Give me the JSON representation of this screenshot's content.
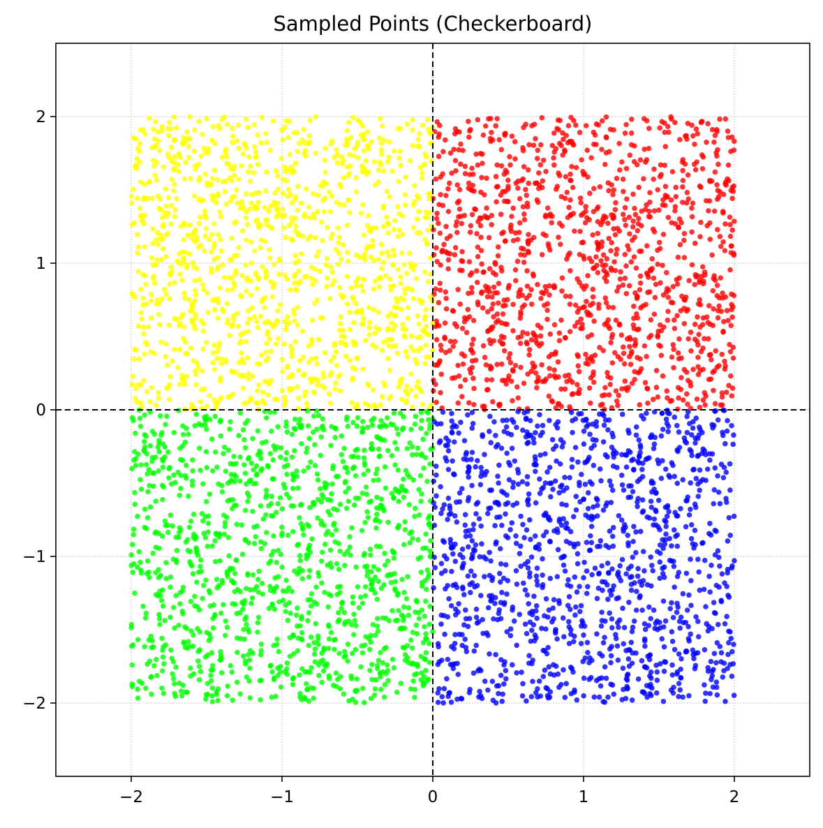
{
  "chart_data": {
    "type": "scatter",
    "title": "Sampled Points (Checkerboard)",
    "xlabel": "",
    "ylabel": "",
    "xlim": [
      -2.5,
      2.5
    ],
    "ylim": [
      -2.5,
      2.5
    ],
    "x_ticks": [
      -2,
      -1,
      0,
      1,
      2
    ],
    "y_ticks": [
      -2,
      -1,
      0,
      1,
      2
    ],
    "x_tick_labels": [
      "−2",
      "−1",
      "0",
      "1",
      "2"
    ],
    "y_tick_labels": [
      "−2",
      "−1",
      "0",
      "1",
      "2"
    ],
    "grid": true,
    "grid_style": "dotted",
    "reference_lines": [
      {
        "axis": "x",
        "value": 0,
        "style": "dashed",
        "color": "#000000"
      },
      {
        "axis": "y",
        "value": 0,
        "style": "dashed",
        "color": "#000000"
      }
    ],
    "legend": "none",
    "series": [
      {
        "region": "top-right",
        "x_range": [
          0,
          2
        ],
        "y_range": [
          0,
          2
        ],
        "color": "#ff0000",
        "count": 1250
      },
      {
        "region": "top-left",
        "x_range": [
          -2,
          0
        ],
        "y_range": [
          0,
          2
        ],
        "color": "#ffff00",
        "count": 1250
      },
      {
        "region": "bottom-left",
        "x_range": [
          -2,
          0
        ],
        "y_range": [
          -2,
          0
        ],
        "color": "#00ff00",
        "count": 1250
      },
      {
        "region": "bottom-right",
        "x_range": [
          0,
          2
        ],
        "y_range": [
          -2,
          0
        ],
        "color": "#0000ff",
        "count": 1250
      }
    ]
  }
}
